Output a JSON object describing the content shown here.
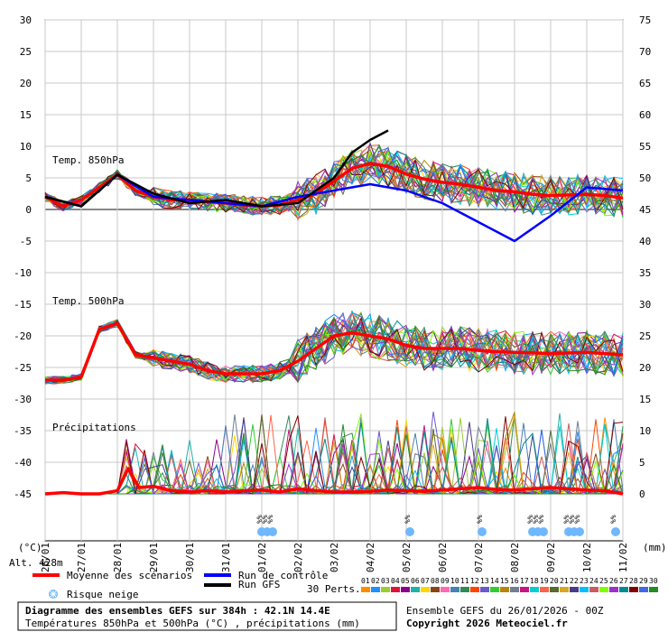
{
  "labels": {
    "temp850": "Temp. 850hPa",
    "temp500": "Temp. 500hPa",
    "precip": "Précipitations",
    "unit_left": "(°C)",
    "unit_right": "(mm)",
    "altitude": "Alt. 428m",
    "perts": "30 Perts.",
    "snow_mark": "%%"
  },
  "legend": {
    "mean": "Moyenne des scénarios",
    "control": "Run de contrôle",
    "gfs": "Run GFS",
    "snow": "Risque neige"
  },
  "footer": {
    "title": "Diagramme des ensembles GEFS sur 384h : 42.1N 14.4E",
    "subtitle": "Températures 850hPa et 500hPa (°C) , précipitations (mm)",
    "ensemble": "Ensemble GEFS du 26/01/2026 - 00Z",
    "copyright": "Copyright 2026 Meteociel.fr"
  },
  "perturbations": {
    "numbers": [
      "01",
      "02",
      "03",
      "04",
      "05",
      "06",
      "07",
      "08",
      "09",
      "10",
      "11",
      "12",
      "13",
      "14",
      "15",
      "16",
      "17",
      "18",
      "19",
      "20",
      "21",
      "22",
      "23",
      "24",
      "25",
      "26",
      "27",
      "28",
      "29",
      "30"
    ],
    "colors": [
      "#ff8c00",
      "#1e90ff",
      "#9acd32",
      "#dc143c",
      "#8b008b",
      "#20b2aa",
      "#ffd700",
      "#8b4513",
      "#ff69b4",
      "#4682b4",
      "#2e8b57",
      "#ff4500",
      "#6a5acd",
      "#32cd32",
      "#b8860b",
      "#708090",
      "#c71585",
      "#00ced1",
      "#ff6347",
      "#556b2f",
      "#daa520",
      "#483d8b",
      "#00bfff",
      "#cd5c5c",
      "#7fff00",
      "#9932cc",
      "#008b8b",
      "#800000",
      "#4169e1",
      "#228b22"
    ]
  },
  "chart_data": {
    "type": "line",
    "x_ticks": [
      "27/01",
      "28/01",
      "29/01",
      "30/01",
      "31/01",
      "01/02",
      "02/02",
      "03/02",
      "04/02",
      "05/02",
      "06/02",
      "07/02",
      "08/02",
      "09/02",
      "10/02",
      "11/02"
    ],
    "x_first_tick": "26/01",
    "left_axis": {
      "ticks": [
        30,
        25,
        20,
        15,
        10,
        5,
        0,
        -5,
        -10,
        -15,
        -20,
        -25,
        -30,
        -35,
        -40,
        -45
      ],
      "range": [
        -45,
        30
      ],
      "unit": "°C"
    },
    "right_axis_temp": {
      "ticks": [
        75,
        70,
        65,
        60,
        55,
        50,
        45,
        40,
        35,
        30,
        25,
        20,
        15,
        10,
        5,
        0
      ],
      "unit": "mm"
    },
    "snow_risk_days": [
      6.0,
      6.15,
      6.3,
      10.1,
      12.1,
      13.5,
      13.65,
      13.8,
      14.5,
      14.65,
      14.8,
      15.8
    ],
    "series": [
      {
        "name": "Moyenne des scénarios",
        "panel": "temp850",
        "x_days": [
          0,
          0.5,
          1,
          1.5,
          2,
          2.5,
          3,
          3.5,
          4,
          4.5,
          5,
          5.5,
          6,
          6.5,
          7,
          7.5,
          8,
          8.5,
          9,
          9.5,
          10,
          10.5,
          11,
          11.5,
          12,
          12.5,
          13,
          13.5,
          14,
          14.5,
          15,
          15.5,
          16
        ],
        "values": [
          2,
          0.5,
          1.5,
          3.5,
          5.5,
          3,
          2,
          1.5,
          1.5,
          1.2,
          1,
          0.7,
          0.5,
          0.7,
          1.5,
          2.5,
          4.5,
          6.5,
          7.3,
          6.8,
          5.6,
          4.8,
          4.3,
          4,
          3.5,
          3,
          2.8,
          2.4,
          2.2,
          2.3,
          2.4,
          2.2,
          1.8
        ]
      },
      {
        "name": "Moyenne des scénarios",
        "panel": "temp500",
        "x_days": [
          0,
          0.5,
          1,
          1.5,
          2,
          2.5,
          3,
          3.5,
          4,
          4.5,
          5,
          5.5,
          6,
          6.5,
          7,
          7.5,
          8,
          8.5,
          9,
          9.5,
          10,
          10.5,
          11,
          11.5,
          12,
          12.5,
          13,
          13.5,
          14,
          14.5,
          15,
          15.5,
          16
        ],
        "values": [
          -27,
          -27,
          -26.5,
          -19,
          -18,
          -23,
          -23.5,
          -24,
          -24.5,
          -25.5,
          -26,
          -26,
          -26,
          -25.5,
          -24,
          -22,
          -20,
          -19.5,
          -20,
          -20.5,
          -21.5,
          -22,
          -22,
          -22,
          -22.3,
          -22.5,
          -22.6,
          -22.7,
          -22.8,
          -22.7,
          -22.6,
          -22.8,
          -23
        ]
      },
      {
        "name": "Moyenne des scénarios",
        "panel": "precip",
        "x_days": [
          0,
          0.5,
          1,
          1.5,
          2,
          2.3,
          2.6,
          3,
          3.5,
          4,
          4.5,
          5,
          5.5,
          6,
          6.5,
          7,
          7.5,
          8,
          8.5,
          9,
          9.5,
          10,
          10.5,
          11,
          11.5,
          12,
          12.5,
          13,
          13.5,
          14,
          14.5,
          15,
          15.5,
          16
        ],
        "values_mm": [
          0,
          0.2,
          0,
          0,
          0.5,
          4,
          1,
          1.2,
          0.5,
          0.3,
          0.5,
          0.3,
          0.5,
          0.6,
          0.3,
          0.8,
          0.5,
          0.3,
          0.3,
          0.4,
          0.6,
          0.5,
          0.4,
          0.6,
          0.8,
          1,
          0.7,
          0.6,
          0.8,
          1,
          0.8,
          0.6,
          0.5,
          0
        ]
      },
      {
        "name": "Run de contrôle",
        "panel": "temp850",
        "x_days": [
          0,
          1,
          2,
          3,
          4,
          5,
          6,
          7,
          8,
          9,
          10,
          11,
          12,
          13,
          14,
          15,
          16
        ],
        "values": [
          2,
          0.5,
          5.5,
          2,
          1.5,
          1,
          0.5,
          2,
          3,
          4,
          3,
          1,
          -2,
          -5,
          -1,
          3.5,
          3
        ]
      },
      {
        "name": "Run GFS",
        "panel": "temp850",
        "x_days": [
          0,
          1,
          2,
          3,
          4,
          5,
          6,
          7,
          8,
          8.5,
          9,
          9.5
        ],
        "values": [
          2,
          0.5,
          5.5,
          2.5,
          1,
          1.5,
          0.5,
          1,
          5,
          9,
          11,
          12.5
        ]
      }
    ]
  }
}
